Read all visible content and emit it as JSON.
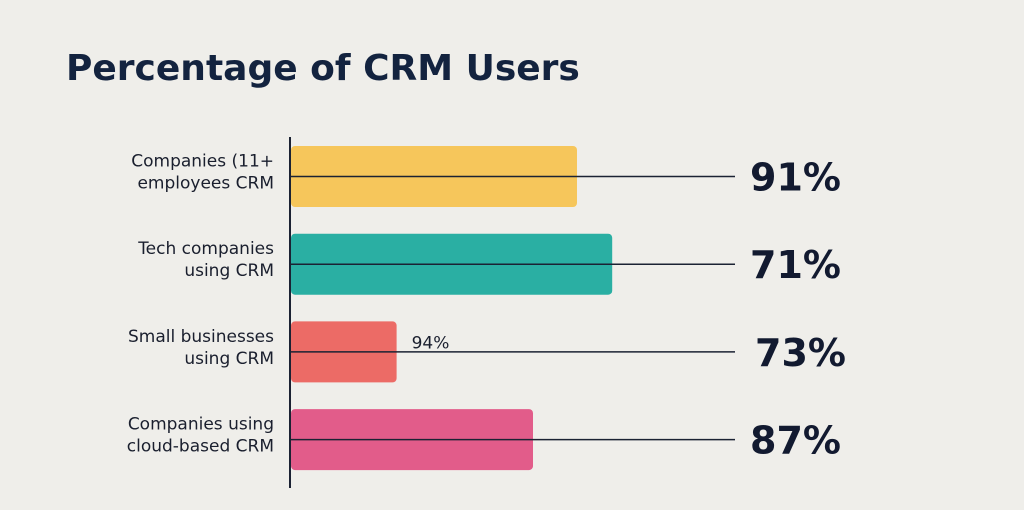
{
  "chart_data": {
    "type": "bar",
    "orientation": "horizontal",
    "title": "Percentage of CRM Users",
    "categories": [
      [
        "Companies (11+",
        "employees CRM"
      ],
      [
        "Tech companies",
        "using CRM"
      ],
      [
        "Small businesses",
        "using CRM"
      ],
      [
        "Companies using",
        "cloud-based CRM"
      ]
    ],
    "values": [
      91,
      71,
      73,
      87
    ],
    "value_labels": [
      "91%",
      "71%",
      "73%",
      "87%"
    ],
    "bar_lengths": [
      65,
      73,
      24,
      55
    ],
    "inner_labels": [
      "",
      "",
      "94%",
      ""
    ],
    "colors": [
      "#f6c65b",
      "#2aafa3",
      "#ec6b66",
      "#e25c8a"
    ],
    "xlim": [
      0,
      100
    ],
    "legend": "none",
    "grid": false
  }
}
